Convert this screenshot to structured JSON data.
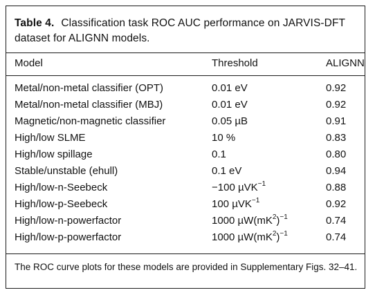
{
  "table": {
    "label": "Table 4.",
    "title": "Classification task ROC AUC performance on JARVIS-DFT dataset for ALIGNN models.",
    "headers": [
      "Model",
      "Threshold",
      "ALIGNN"
    ],
    "rows": [
      {
        "model": "Metal/non-metal classifier (OPT)",
        "threshold": "0.01 eV",
        "threshold_sup": "",
        "threshold_tail": "",
        "alignn": "0.92"
      },
      {
        "model": "Metal/non-metal classifier (MBJ)",
        "threshold": "0.01 eV",
        "threshold_sup": "",
        "threshold_tail": "",
        "alignn": "0.92"
      },
      {
        "model": "Magnetic/non-magnetic classifier",
        "threshold": "0.05 µB",
        "threshold_sup": "",
        "threshold_tail": "",
        "alignn": "0.91"
      },
      {
        "model": "High/low SLME",
        "threshold": "10 %",
        "threshold_sup": "",
        "threshold_tail": "",
        "alignn": "0.83"
      },
      {
        "model": "High/low spillage",
        "threshold": "0.1",
        "threshold_sup": "",
        "threshold_tail": "",
        "alignn": "0.80"
      },
      {
        "model": "Stable/unstable (ehull)",
        "threshold": "0.1 eV",
        "threshold_sup": "",
        "threshold_tail": "",
        "alignn": "0.94"
      },
      {
        "model": "High/low-n-Seebeck",
        "threshold": "−100 µVK",
        "threshold_sup": "−1",
        "threshold_tail": "",
        "alignn": "0.88"
      },
      {
        "model": "High/low-p-Seebeck",
        "threshold": "100 µVK",
        "threshold_sup": "−1",
        "threshold_tail": "",
        "alignn": "0.92"
      },
      {
        "model": "High/low-n-powerfactor",
        "threshold": "1000 µW(mK",
        "threshold_sup": "2",
        "threshold_tail": ")",
        "threshold_sup2": "−1",
        "alignn": "0.74"
      },
      {
        "model": "High/low-p-powerfactor",
        "threshold": "1000 µW(mK",
        "threshold_sup": "2",
        "threshold_tail": ")",
        "threshold_sup2": "−1",
        "alignn": "0.74"
      }
    ],
    "footnote": "The ROC curve plots for these models are provided in Supplementary Figs. 32–41."
  }
}
